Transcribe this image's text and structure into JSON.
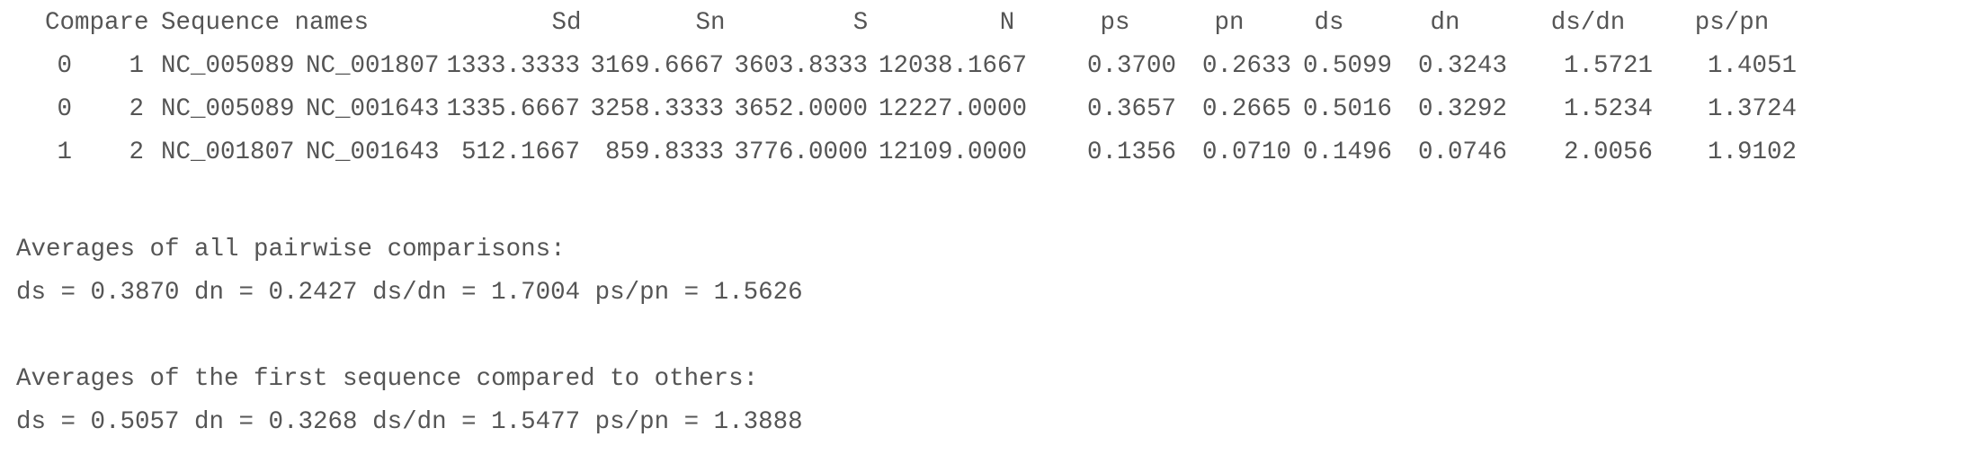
{
  "table": {
    "headers": {
      "compare": "Compare",
      "names": "Sequence names",
      "sd": "Sd",
      "sn": "Sn",
      "s": "S",
      "n": "N",
      "ps": "ps",
      "pn": "pn",
      "ds": "ds",
      "dn": "dn",
      "dsdn": "ds/dn",
      "pspn": "ps/pn"
    },
    "rows": [
      {
        "i": "0",
        "j": "1",
        "name1": "NC_005089",
        "name2": "NC_001807",
        "sd": "1333.3333",
        "sn": "3169.6667",
        "s": "3603.8333",
        "n": "12038.1667",
        "ps": "0.3700",
        "pn": "0.2633",
        "ds": "0.5099",
        "dn": "0.3243",
        "dsdn": "1.5721",
        "pspn": "1.4051"
      },
      {
        "i": "0",
        "j": "2",
        "name1": "NC_005089",
        "name2": "NC_001643",
        "sd": "1335.6667",
        "sn": "3258.3333",
        "s": "3652.0000",
        "n": "12227.0000",
        "ps": "0.3657",
        "pn": "0.2665",
        "ds": "0.5016",
        "dn": "0.3292",
        "dsdn": "1.5234",
        "pspn": "1.3724"
      },
      {
        "i": "1",
        "j": "2",
        "name1": "NC_001807",
        "name2": "NC_001643",
        "sd": "512.1667",
        "sn": "859.8333",
        "s": "3776.0000",
        "n": "12109.0000",
        "ps": "0.1356",
        "pn": "0.0710",
        "ds": "0.1496",
        "dn": "0.0746",
        "dsdn": "2.0056",
        "pspn": "1.9102"
      }
    ]
  },
  "summary": {
    "all_heading": "Averages of all pairwise comparisons:",
    "all_values": "ds = 0.3870 dn = 0.2427 ds/dn = 1.7004 ps/pn = 1.5626",
    "first_heading": "Averages of the first sequence compared to others:",
    "first_values": "ds = 0.5057 dn = 0.3268 ds/dn = 1.5477 ps/pn = 1.3888"
  },
  "colors": {
    "text": "#555555",
    "background": "#ffffff"
  }
}
